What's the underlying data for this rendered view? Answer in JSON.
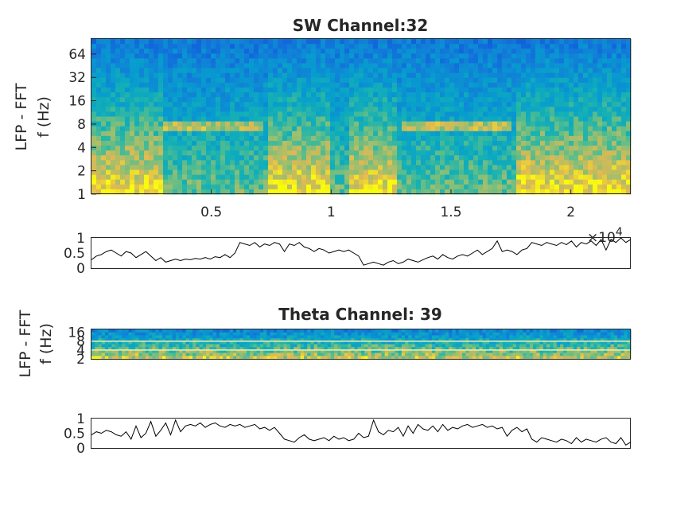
{
  "chart_data": [
    {
      "type": "heatmap",
      "title": "SW Channel:32",
      "ylabel": [
        "LFP - FFT",
        "f (Hz)"
      ],
      "y_scale": "log2",
      "ylim": [
        1,
        100
      ],
      "y_ticks": [
        "1",
        "2",
        "4",
        "8",
        "16",
        "32",
        "64"
      ],
      "xlim": [
        0,
        22500
      ],
      "x_ticks": [
        "0.5",
        "1",
        "1.5",
        "2"
      ],
      "x_tick_values": [
        5000,
        10000,
        15000,
        20000
      ],
      "x_exponent_label": "×10",
      "x_exponent_power": "4",
      "colormap": "parula",
      "high_power_periods": [
        [
          0,
          3000
        ],
        [
          7300,
          10000
        ],
        [
          10700,
          12800
        ],
        [
          17700,
          22500
        ]
      ],
      "theta_band_periods": [
        [
          3000,
          7200
        ],
        [
          12900,
          17500
        ]
      ],
      "theta_band_hz": 8
    },
    {
      "type": "line",
      "series": [
        {
          "values": [
            0.28,
            0.4,
            0.45,
            0.55,
            0.6,
            0.5,
            0.4,
            0.55,
            0.5,
            0.35,
            0.45,
            0.55,
            0.4,
            0.25,
            0.35,
            0.2,
            0.25,
            0.3,
            0.25,
            0.3,
            0.28,
            0.32,
            0.3,
            0.35,
            0.3,
            0.38,
            0.35,
            0.45,
            0.35,
            0.5,
            0.85,
            0.8,
            0.75,
            0.85,
            0.7,
            0.8,
            0.75,
            0.85,
            0.8,
            0.55,
            0.8,
            0.75,
            0.85,
            0.7,
            0.65,
            0.55,
            0.65,
            0.6,
            0.5,
            0.55,
            0.6,
            0.55,
            0.6,
            0.5,
            0.4,
            0.1,
            0.15,
            0.2,
            0.15,
            0.1,
            0.2,
            0.25,
            0.15,
            0.2,
            0.3,
            0.25,
            0.2,
            0.28,
            0.35,
            0.4,
            0.3,
            0.45,
            0.35,
            0.3,
            0.4,
            0.45,
            0.4,
            0.5,
            0.6,
            0.45,
            0.55,
            0.65,
            0.9,
            0.55,
            0.6,
            0.55,
            0.45,
            0.6,
            0.65,
            0.85,
            0.8,
            0.75,
            0.85,
            0.8,
            0.75,
            0.85,
            0.78,
            0.9,
            0.7,
            0.85,
            0.8,
            0.9,
            0.75,
            0.95,
            0.6,
            0.95,
            0.85,
            1.0,
            0.85,
            0.95
          ]
        }
      ],
      "xlim": [
        0,
        22500
      ],
      "ylim": [
        0,
        1
      ],
      "y_ticks": [
        "0",
        "0.5",
        "1"
      ]
    },
    {
      "type": "heatmap",
      "title": "Theta Channel: 39",
      "ylabel": [
        "LFP - FFT",
        "f (Hz)"
      ],
      "y_scale": "log2",
      "ylim": [
        2,
        20
      ],
      "y_ticks": [
        "2",
        "4",
        "8",
        "16"
      ],
      "xlim": [
        0,
        22500
      ],
      "colormap": "parula",
      "band_lines_hz": [
        4,
        8
      ]
    },
    {
      "type": "line",
      "series": [
        {
          "values": [
            0.45,
            0.55,
            0.5,
            0.6,
            0.55,
            0.45,
            0.4,
            0.55,
            0.3,
            0.75,
            0.35,
            0.5,
            0.9,
            0.4,
            0.6,
            0.85,
            0.45,
            0.95,
            0.55,
            0.75,
            0.8,
            0.75,
            0.85,
            0.7,
            0.8,
            0.85,
            0.75,
            0.7,
            0.8,
            0.75,
            0.8,
            0.7,
            0.75,
            0.8,
            0.65,
            0.7,
            0.6,
            0.7,
            0.5,
            0.3,
            0.25,
            0.2,
            0.35,
            0.45,
            0.3,
            0.25,
            0.3,
            0.35,
            0.25,
            0.4,
            0.3,
            0.35,
            0.25,
            0.3,
            0.5,
            0.35,
            0.4,
            0.95,
            0.55,
            0.45,
            0.6,
            0.55,
            0.7,
            0.4,
            0.75,
            0.5,
            0.8,
            0.65,
            0.6,
            0.75,
            0.55,
            0.8,
            0.6,
            0.7,
            0.65,
            0.75,
            0.8,
            0.7,
            0.75,
            0.8,
            0.7,
            0.75,
            0.65,
            0.7,
            0.4,
            0.6,
            0.7,
            0.55,
            0.65,
            0.3,
            0.2,
            0.35,
            0.3,
            0.25,
            0.2,
            0.3,
            0.25,
            0.15,
            0.35,
            0.2,
            0.3,
            0.25,
            0.2,
            0.3,
            0.35,
            0.2,
            0.15,
            0.35,
            0.1,
            0.2
          ]
        }
      ],
      "xlim": [
        0,
        22500
      ],
      "ylim": [
        0,
        1
      ],
      "y_ticks": [
        "0",
        "0.5",
        "1"
      ]
    }
  ]
}
